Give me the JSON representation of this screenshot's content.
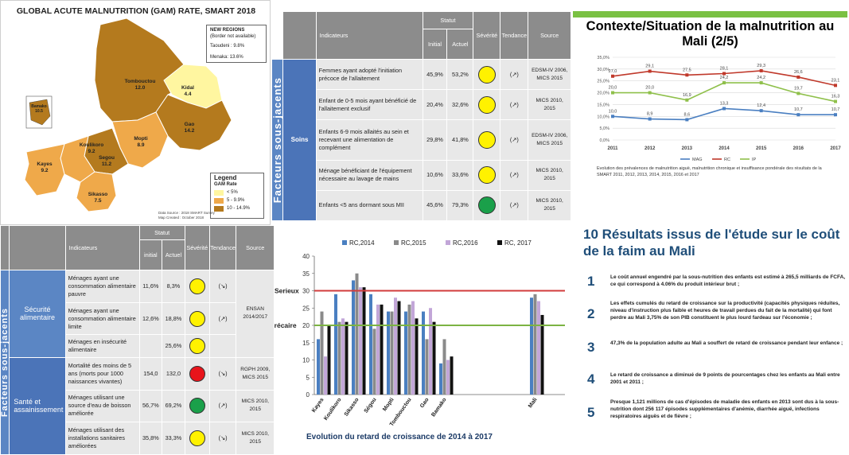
{
  "map": {
    "title": "GLOBAL ACUTE MALNUTRITION (GAM) RATE, SMART 2018",
    "new_regions": {
      "heading": "NEW REGIONS",
      "sub": "(Border not available)",
      "taoudeni": "Taoudeni : 9.8%",
      "menaka": "Menaka: 13.6%"
    },
    "regions": [
      {
        "name": "Kidal",
        "value": "4.4"
      },
      {
        "name": "Tombouctou",
        "value": "12.0"
      },
      {
        "name": "Gao",
        "value": "14.2"
      },
      {
        "name": "Mopti",
        "value": "8.9"
      },
      {
        "name": "Koulikoro",
        "value": "9.2"
      },
      {
        "name": "Segou",
        "value": "11.2"
      },
      {
        "name": "Kayes",
        "value": "9.2"
      },
      {
        "name": "Sikasso",
        "value": "7.5"
      },
      {
        "name": "Bamako",
        "value": "10.5"
      }
    ],
    "legend": {
      "title": "Legend",
      "subtitle": "GAM Rate",
      "items": [
        "< 5%",
        "5 - 9.9%",
        "10 - 14.9%"
      ],
      "colors": [
        "#fff6a0",
        "#efa94a",
        "#b47a1e"
      ]
    },
    "footer": [
      "Data Source : 2018 SMART Survey",
      "Map Created : October 2018"
    ]
  },
  "table_soins": {
    "side_label": "Facteurs sous-jacents",
    "group": "Soins",
    "headers": {
      "indicateurs": "Indicateurs",
      "statut": "Statut",
      "initial": "Initial",
      "actuel": "Actuel",
      "severite": "Sévérité",
      "tendance": "Tendance",
      "source": "Source"
    },
    "rows": [
      {
        "indicateur": "Femmes ayant adopté l'initiation précoce de l'allaitement",
        "initial": "45,9%",
        "actuel": "53,2%",
        "severite": "#fff200",
        "tendance": "(↗)",
        "source": "EDSM-IV 2006, MICS 2015"
      },
      {
        "indicateur": "Enfant de 0-5 mois ayant bénéficié de l'allaitement exclusif",
        "initial": "20,4%",
        "actuel": "32,6%",
        "severite": "#fff200",
        "tendance": "(↗)",
        "source": "MICS 2010, 2015"
      },
      {
        "indicateur": "Enfants 6-9 mois allaités au sein et recevant une alimentation de complément",
        "initial": "29,8%",
        "actuel": "41,8%",
        "severite": "#fff200",
        "tendance": "(↗)",
        "source": "EDSM-IV 2006, MICS 2015"
      },
      {
        "indicateur": "Ménage bénéficiant de l'équipement nécessaire au lavage de mains",
        "initial": "10,6%",
        "actuel": "33,6%",
        "severite": "#fff200",
        "tendance": "(↗)",
        "source": "MICS 2010, 2015"
      },
      {
        "indicateur": "Enfants <5 ans dormant sous MII",
        "initial": "45,6%",
        "actuel": "79,3%",
        "severite": "#1aa04a",
        "tendance": "(↗)",
        "source": "MICS 2010, 2015"
      }
    ]
  },
  "table_secu": {
    "side_label": "Facteurs sous-jacents",
    "headers": {
      "indicateurs": "Indicateurs",
      "statut": "Statut",
      "initial": "initial",
      "actuel": "Actuel",
      "severite": "Sévérité",
      "tendance": "Tendance",
      "source": "Source"
    },
    "groups": [
      {
        "label": "Sécurité alimentaire",
        "source": "ENSAN 2014/2017",
        "rows": [
          {
            "indicateur": "Ménages ayant une consommation alimentaire pauvre",
            "initial": "11,6%",
            "actuel": "8,3%",
            "severite": "#fff200",
            "tendance": "(↘)"
          },
          {
            "indicateur": "Ménages ayant une consommation alimentaire limite",
            "initial": "12,6%",
            "actuel": "18,8%",
            "severite": "#fff200",
            "tendance": "(↗)"
          },
          {
            "indicateur": "Ménages en insécurité alimentaire",
            "initial": "",
            "actuel": "25,6%",
            "severite": "#fff200",
            "tendance": ""
          }
        ]
      },
      {
        "label": "Santé et assainissement",
        "rows": [
          {
            "indicateur": "Mortalité des moins de 5 ans (morts pour 1000 naissances vivantes)",
            "initial": "154,0",
            "actuel": "132,0",
            "severite": "#e8141b",
            "tendance": "(↘)",
            "source": "RGPH 2009, MICS 2015"
          },
          {
            "indicateur": "Ménages utilisant une source d'eau de boisson améliorée",
            "initial": "56,7%",
            "actuel": "69,2%",
            "severite": "#1aa04a",
            "tendance": "(↗)",
            "source": "MICS 2010, 2015"
          },
          {
            "indicateur": "Ménages utilisant des installations sanitaires améliorées",
            "initial": "35,8%",
            "actuel": "33,3%",
            "severite": "#fff200",
            "tendance": "(↘)",
            "source": "MICS 2010, 2015"
          }
        ]
      }
    ]
  },
  "line_panel": {
    "title": "Contexte/Situation de la malnutrition au Mali (2/5)",
    "caption": "Evolution des prévalences de malnutrition aiguë, malnutrition chronique et insuffisance pondérale des résultats de la SMART 2011, 2012, 2013, 2014, 2015, 2016 et 2017"
  },
  "bar_panel": {
    "caption": "Evolution du retard de croissance de 2014 à 2017",
    "threshold_labels": {
      "serieux": "Serieux",
      "precaire": "Précaire"
    }
  },
  "results": {
    "title": "10 Résultats issus de l'étude sur le coût de la faim au Mali",
    "items": [
      {
        "n": "1",
        "text": "Le coût annuel engendré par la sous-nutrition des enfants est estimé à 265,5 milliards de FCFA, ce qui correspond à 4.06% du produit intérieur brut ;"
      },
      {
        "n": "2",
        "text": "Les effets cumulés du retard de croissance sur la productivité (capacités physiques réduites, niveau d'instruction plus faible et heures de travail perdues du fait de la mortalité) qui font perdre au Mali 3,75% de son PIB constituent le plus lourd fardeau sur l'économie ;"
      },
      {
        "n": "3",
        "text": "47,3% de la population adulte au Mali a souffert de retard de croissance pendant leur enfance ;"
      },
      {
        "n": "4",
        "text": "Le retard de croissance a diminué de 9 points de pourcentages chez les enfants au Mali entre 2001 et 2011 ;"
      },
      {
        "n": "5",
        "text": "Presque 1,121 millions de cas d'épisodes de maladie des enfants en 2013 sont dus à la sous-nutrition dont 256 117 épisodes supplémentaires d'anémie, diarrhée aiguë, infections respiratoires aiguës et de fièvre ;"
      }
    ]
  },
  "chart_data": [
    {
      "type": "line",
      "x": [
        "2011",
        "2012",
        "2013",
        "2014",
        "2015",
        "2016",
        "2017"
      ],
      "series": [
        {
          "name": "MAG",
          "color": "#4a7fc1",
          "values": [
            10.0,
            8.9,
            8.6,
            13.3,
            12.4,
            10.7,
            10.7
          ],
          "labels": [
            "10,0",
            "8,9",
            "8,6",
            "13,3",
            "12,4",
            "10,7",
            "10,7"
          ]
        },
        {
          "name": "RC",
          "color": "#c0392b",
          "values": [
            27.0,
            29.1,
            27.5,
            28.1,
            29.3,
            26.6,
            23.1
          ],
          "labels": [
            "27,0",
            "29,1",
            "27,5",
            "28,1",
            "29,3",
            "26,6",
            "23,1"
          ]
        },
        {
          "name": "IP",
          "color": "#8fc04b",
          "values": [
            20.0,
            20.0,
            16.9,
            24.2,
            24.2,
            19.7,
            16.3
          ],
          "labels": [
            "20,0",
            "20,0",
            "16,9",
            "24,2",
            "24,2",
            "19,7",
            "16,3"
          ]
        }
      ],
      "yticks": [
        "0,0%",
        "5,0%",
        "10,0%",
        "15,0%",
        "20,0%",
        "25,0%",
        "30,0%",
        "35,0%"
      ],
      "ylim": [
        0,
        35
      ]
    },
    {
      "type": "bar",
      "categories": [
        "Kayes",
        "Koulikoro",
        "Sikasso",
        "Ségou",
        "Mopti",
        "Tombouctou",
        "Gao",
        "Bamako",
        "Mali"
      ],
      "series": [
        {
          "name": "RC,2014",
          "color": "#4a7fc1",
          "values": [
            16,
            29,
            33,
            29,
            24,
            24,
            24,
            9,
            28
          ]
        },
        {
          "name": "RC,2015",
          "color": "#8a8a8a",
          "values": [
            24,
            21,
            35,
            19,
            24,
            26,
            16,
            16,
            29
          ]
        },
        {
          "name": "RC,2016",
          "color": "#c2a6d8",
          "values": [
            11,
            22,
            31,
            26,
            28,
            27,
            25,
            10,
            27
          ]
        },
        {
          "name": "RC, 2017",
          "color": "#111111",
          "values": [
            20,
            21,
            31,
            26,
            27,
            22,
            21,
            11,
            23
          ]
        }
      ],
      "ylim": [
        0,
        40
      ],
      "yticks": [
        "0",
        "5",
        "10",
        "15",
        "20",
        "25",
        "30",
        "35",
        "40"
      ],
      "thresholds": [
        {
          "label": "Serieux",
          "value": 30,
          "color": "#d23c3c"
        },
        {
          "label": "Précaire",
          "value": 20,
          "color": "#7cb342"
        }
      ]
    }
  ]
}
